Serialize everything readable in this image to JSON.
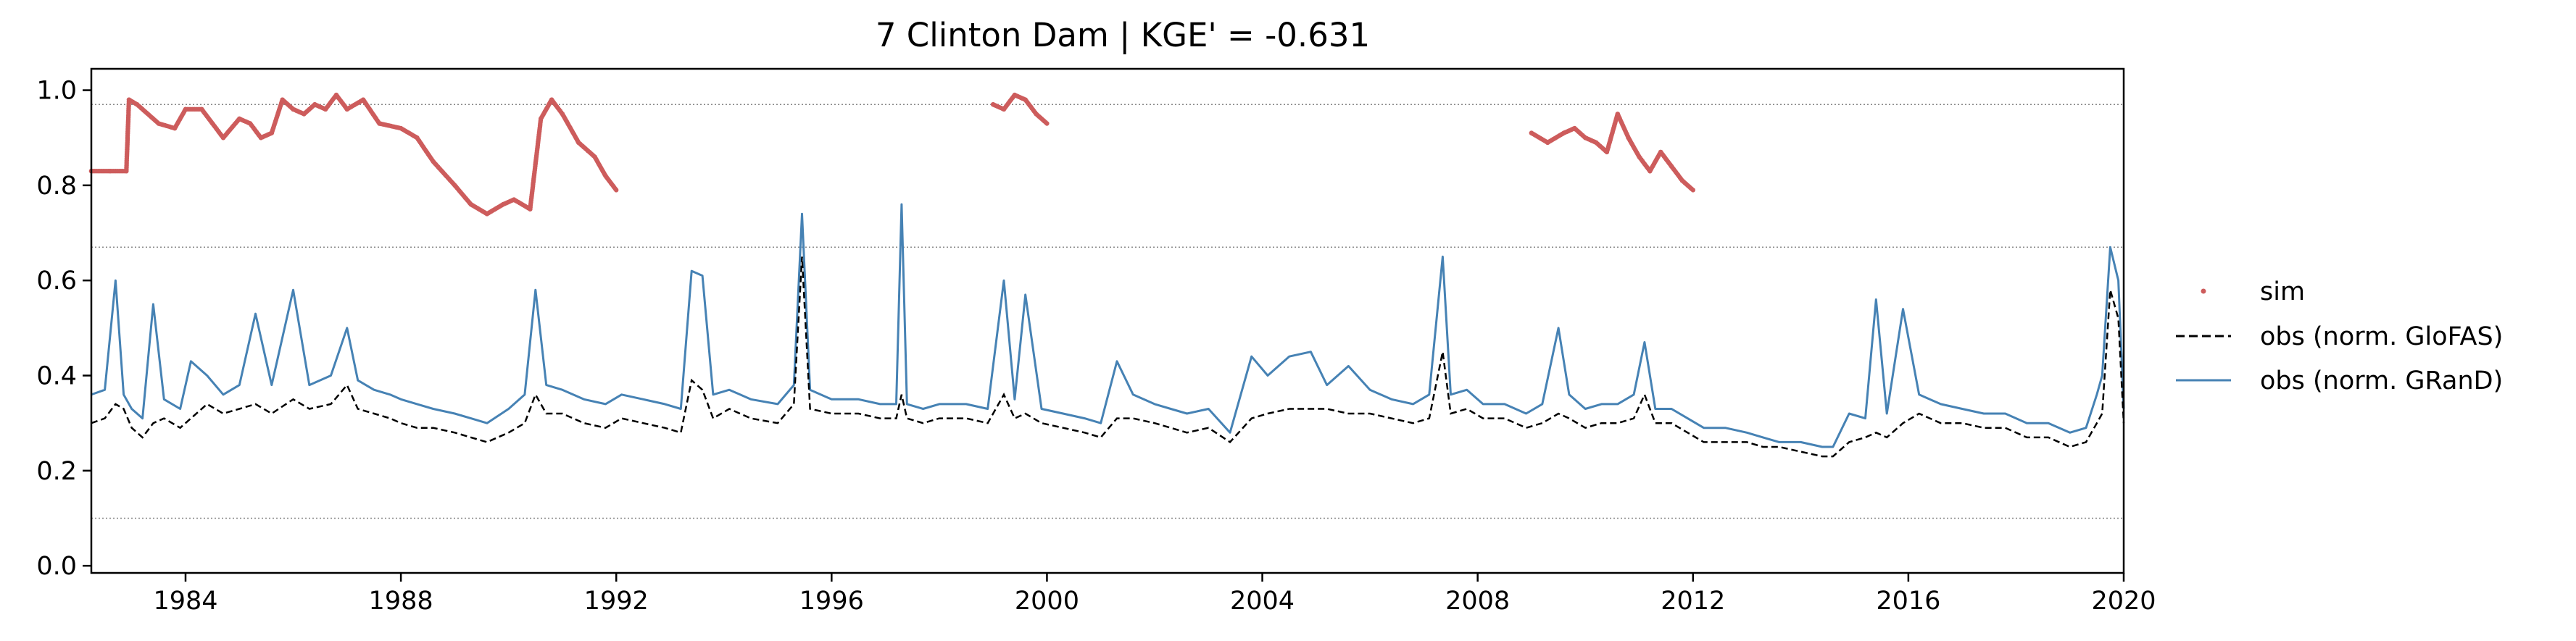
{
  "chart_data": {
    "type": "line",
    "title": "7  Clinton Dam | KGE' = -0.631",
    "xlabel": "",
    "ylabel": "",
    "xlim": [
      1982.25,
      2020.0
    ],
    "ylim": [
      -0.015,
      1.045
    ],
    "x_ticks": [
      1984,
      1988,
      1992,
      1996,
      2000,
      2004,
      2008,
      2012,
      2016,
      2020
    ],
    "x_tick_labels": [
      "1984",
      "1988",
      "1992",
      "1996",
      "2000",
      "2004",
      "2008",
      "2012",
      "2016",
      "2020"
    ],
    "y_ticks": [
      0.0,
      0.2,
      0.4,
      0.6,
      0.8,
      1.0
    ],
    "y_tick_labels": [
      "0.0",
      "0.2",
      "0.4",
      "0.6",
      "0.8",
      "1.0"
    ],
    "reference_lines": [
      0.97,
      0.67,
      0.1
    ],
    "grid": false,
    "legend_position": "right",
    "colors": {
      "sim": "#cd5c5c",
      "obs_glofas": "#000000",
      "obs_grand": "#4682b4",
      "reference": "#888888"
    },
    "series": [
      {
        "name": "sim",
        "style": "dots",
        "x": [
          1982.25,
          1982.6,
          1982.9,
          1982.95,
          1983.1,
          1983.5,
          1983.8,
          1984.0,
          1984.3,
          1984.5,
          1984.7,
          1985.0,
          1985.2,
          1985.4,
          1985.6,
          1985.8,
          1986.0,
          1986.2,
          1986.4,
          1986.6,
          1986.8,
          1987.0,
          1987.3,
          1987.6,
          1988.0,
          1988.3,
          1988.6,
          1989.0,
          1989.3,
          1989.6,
          1989.9,
          1990.1,
          1990.4,
          1990.6,
          1990.8,
          1991.0,
          1991.3,
          1991.6,
          1991.8,
          1992.0,
          null,
          1999.0,
          1999.2,
          1999.4,
          1999.6,
          1999.8,
          2000.0,
          null,
          2009.0,
          2009.3,
          2009.6,
          2009.8,
          2010.0,
          2010.2,
          2010.4,
          2010.6,
          2010.8,
          2011.0,
          2011.2,
          2011.4,
          2011.6,
          2011.8,
          2012.0
        ],
        "y": [
          0.83,
          0.83,
          0.83,
          0.98,
          0.97,
          0.93,
          0.92,
          0.96,
          0.96,
          0.93,
          0.9,
          0.94,
          0.93,
          0.9,
          0.91,
          0.98,
          0.96,
          0.95,
          0.97,
          0.96,
          0.99,
          0.96,
          0.98,
          0.93,
          0.92,
          0.9,
          0.85,
          0.8,
          0.76,
          0.74,
          0.76,
          0.77,
          0.75,
          0.94,
          0.98,
          0.95,
          0.89,
          0.86,
          0.82,
          0.79,
          null,
          0.97,
          0.96,
          0.99,
          0.98,
          0.95,
          0.93,
          null,
          0.91,
          0.89,
          0.91,
          0.92,
          0.9,
          0.89,
          0.87,
          0.95,
          0.9,
          0.86,
          0.83,
          0.87,
          0.84,
          0.81,
          0.79
        ]
      },
      {
        "name": "obs (norm. GloFAS)",
        "style": "dashed",
        "x": [
          1982.25,
          1982.5,
          1982.7,
          1982.85,
          1983.0,
          1983.2,
          1983.4,
          1983.6,
          1983.9,
          1984.1,
          1984.4,
          1984.7,
          1985.0,
          1985.3,
          1985.6,
          1986.0,
          1986.3,
          1986.7,
          1987.0,
          1987.2,
          1987.5,
          1987.8,
          1988.0,
          1988.3,
          1988.6,
          1989.0,
          1989.3,
          1989.6,
          1990.0,
          1990.3,
          1990.5,
          1990.7,
          1991.0,
          1991.4,
          1991.8,
          1992.1,
          1992.5,
          1992.9,
          1993.2,
          1993.4,
          1993.6,
          1993.8,
          1994.1,
          1994.5,
          1995.0,
          1995.3,
          1995.45,
          1995.6,
          1996.0,
          1996.5,
          1996.9,
          1997.2,
          1997.3,
          1997.4,
          1997.7,
          1998.0,
          1998.5,
          1998.9,
          1999.2,
          1999.4,
          1999.6,
          1999.9,
          2000.3,
          2000.7,
          2001.0,
          2001.3,
          2001.6,
          2002.0,
          2002.3,
          2002.6,
          2003.0,
          2003.4,
          2003.8,
          2004.1,
          2004.5,
          2004.9,
          2005.2,
          2005.6,
          2006.0,
          2006.4,
          2006.8,
          2007.1,
          2007.35,
          2007.5,
          2007.8,
          2008.1,
          2008.5,
          2008.9,
          2009.2,
          2009.5,
          2009.7,
          2010.0,
          2010.3,
          2010.6,
          2010.9,
          2011.1,
          2011.3,
          2011.6,
          2011.9,
          2012.2,
          2012.6,
          2013.0,
          2013.3,
          2013.6,
          2014.0,
          2014.4,
          2014.6,
          2014.9,
          2015.2,
          2015.4,
          2015.6,
          2015.9,
          2016.2,
          2016.6,
          2017.0,
          2017.4,
          2017.8,
          2018.2,
          2018.6,
          2019.0,
          2019.3,
          2019.5,
          2019.6,
          2019.75,
          2019.9,
          2020.0
        ],
        "y": [
          0.3,
          0.31,
          0.34,
          0.33,
          0.29,
          0.27,
          0.3,
          0.31,
          0.29,
          0.31,
          0.34,
          0.32,
          0.33,
          0.34,
          0.32,
          0.35,
          0.33,
          0.34,
          0.38,
          0.33,
          0.32,
          0.31,
          0.3,
          0.29,
          0.29,
          0.28,
          0.27,
          0.26,
          0.28,
          0.3,
          0.36,
          0.32,
          0.32,
          0.3,
          0.29,
          0.31,
          0.3,
          0.29,
          0.28,
          0.39,
          0.37,
          0.31,
          0.33,
          0.31,
          0.3,
          0.34,
          0.65,
          0.33,
          0.32,
          0.32,
          0.31,
          0.31,
          0.36,
          0.31,
          0.3,
          0.31,
          0.31,
          0.3,
          0.36,
          0.31,
          0.32,
          0.3,
          0.29,
          0.28,
          0.27,
          0.31,
          0.31,
          0.3,
          0.29,
          0.28,
          0.29,
          0.26,
          0.31,
          0.32,
          0.33,
          0.33,
          0.33,
          0.32,
          0.32,
          0.31,
          0.3,
          0.31,
          0.45,
          0.32,
          0.33,
          0.31,
          0.31,
          0.29,
          0.3,
          0.32,
          0.31,
          0.29,
          0.3,
          0.3,
          0.31,
          0.36,
          0.3,
          0.3,
          0.28,
          0.26,
          0.26,
          0.26,
          0.25,
          0.25,
          0.24,
          0.23,
          0.23,
          0.26,
          0.27,
          0.28,
          0.27,
          0.3,
          0.32,
          0.3,
          0.3,
          0.29,
          0.29,
          0.27,
          0.27,
          0.25,
          0.26,
          0.3,
          0.32,
          0.58,
          0.52,
          0.3
        ]
      },
      {
        "name": "obs (norm. GRanD)",
        "style": "solid",
        "x": [
          1982.25,
          1982.5,
          1982.7,
          1982.85,
          1983.0,
          1983.2,
          1983.4,
          1983.6,
          1983.9,
          1984.1,
          1984.4,
          1984.7,
          1985.0,
          1985.3,
          1985.6,
          1986.0,
          1986.3,
          1986.7,
          1987.0,
          1987.2,
          1987.5,
          1987.8,
          1988.0,
          1988.3,
          1988.6,
          1989.0,
          1989.3,
          1989.6,
          1990.0,
          1990.3,
          1990.5,
          1990.7,
          1991.0,
          1991.4,
          1991.8,
          1992.1,
          1992.5,
          1992.9,
          1993.2,
          1993.4,
          1993.6,
          1993.8,
          1994.1,
          1994.5,
          1995.0,
          1995.3,
          1995.45,
          1995.6,
          1996.0,
          1996.5,
          1996.9,
          1997.2,
          1997.3,
          1997.4,
          1997.7,
          1998.0,
          1998.5,
          1998.9,
          1999.2,
          1999.4,
          1999.6,
          1999.9,
          2000.3,
          2000.7,
          2001.0,
          2001.3,
          2001.6,
          2002.0,
          2002.3,
          2002.6,
          2003.0,
          2003.4,
          2003.8,
          2004.1,
          2004.5,
          2004.9,
          2005.2,
          2005.6,
          2006.0,
          2006.4,
          2006.8,
          2007.1,
          2007.35,
          2007.5,
          2007.8,
          2008.1,
          2008.5,
          2008.9,
          2009.2,
          2009.5,
          2009.7,
          2010.0,
          2010.3,
          2010.6,
          2010.9,
          2011.1,
          2011.3,
          2011.6,
          2011.9,
          2012.2,
          2012.6,
          2013.0,
          2013.3,
          2013.6,
          2014.0,
          2014.4,
          2014.6,
          2014.9,
          2015.2,
          2015.4,
          2015.6,
          2015.9,
          2016.2,
          2016.6,
          2017.0,
          2017.4,
          2017.8,
          2018.2,
          2018.6,
          2019.0,
          2019.3,
          2019.5,
          2019.6,
          2019.75,
          2019.9,
          2020.0
        ],
        "y": [
          0.36,
          0.37,
          0.6,
          0.36,
          0.33,
          0.31,
          0.55,
          0.35,
          0.33,
          0.43,
          0.4,
          0.36,
          0.38,
          0.53,
          0.38,
          0.58,
          0.38,
          0.4,
          0.5,
          0.39,
          0.37,
          0.36,
          0.35,
          0.34,
          0.33,
          0.32,
          0.31,
          0.3,
          0.33,
          0.36,
          0.58,
          0.38,
          0.37,
          0.35,
          0.34,
          0.36,
          0.35,
          0.34,
          0.33,
          0.62,
          0.61,
          0.36,
          0.37,
          0.35,
          0.34,
          0.38,
          0.74,
          0.37,
          0.35,
          0.35,
          0.34,
          0.34,
          0.76,
          0.34,
          0.33,
          0.34,
          0.34,
          0.33,
          0.6,
          0.35,
          0.57,
          0.33,
          0.32,
          0.31,
          0.3,
          0.43,
          0.36,
          0.34,
          0.33,
          0.32,
          0.33,
          0.28,
          0.44,
          0.4,
          0.44,
          0.45,
          0.38,
          0.42,
          0.37,
          0.35,
          0.34,
          0.36,
          0.65,
          0.36,
          0.37,
          0.34,
          0.34,
          0.32,
          0.34,
          0.5,
          0.36,
          0.33,
          0.34,
          0.34,
          0.36,
          0.47,
          0.33,
          0.33,
          0.31,
          0.29,
          0.29,
          0.28,
          0.27,
          0.26,
          0.26,
          0.25,
          0.25,
          0.32,
          0.31,
          0.56,
          0.32,
          0.54,
          0.36,
          0.34,
          0.33,
          0.32,
          0.32,
          0.3,
          0.3,
          0.28,
          0.29,
          0.36,
          0.4,
          0.67,
          0.6,
          0.33
        ]
      }
    ]
  }
}
